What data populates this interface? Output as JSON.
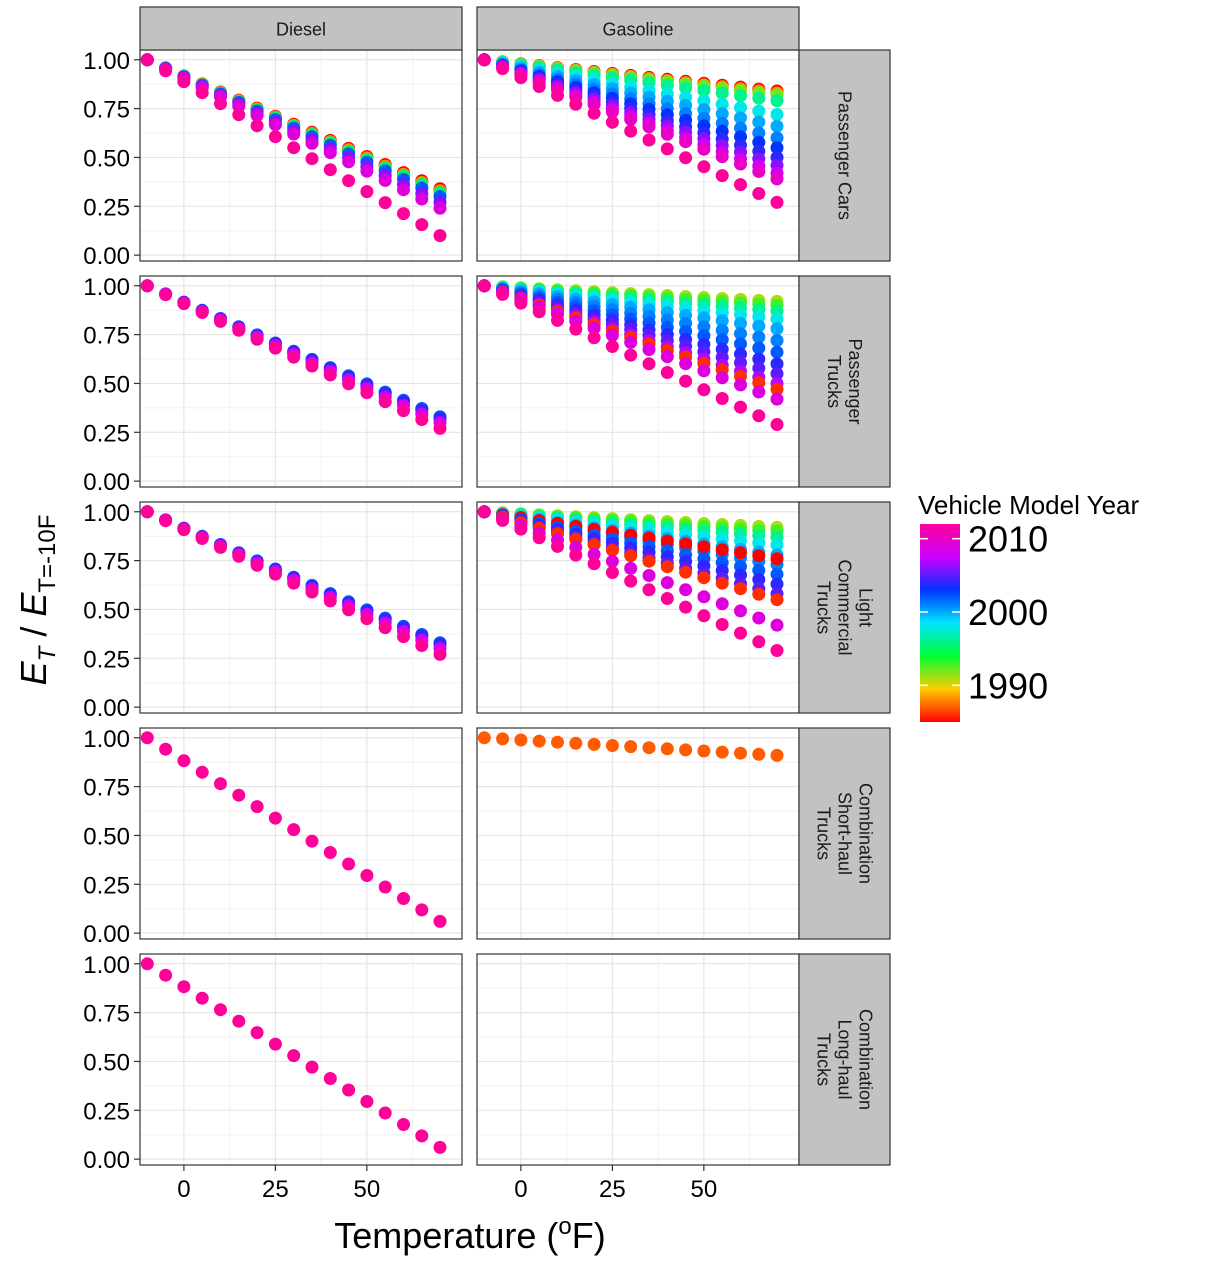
{
  "chart_data": {
    "type": "scatter",
    "title": "",
    "xlabel": "Temperature (oF)",
    "xlabel_parts": {
      "pre": "Temperature (",
      "sup": "o",
      "post": "F)"
    },
    "ylabel": "E_T / E_T=-10F",
    "ylabel_parts": {
      "a": "E",
      "a_sub": "T",
      "slash": " / ",
      "b": "E",
      "b_sub": "T=-10F"
    },
    "xlim": [
      -12,
      76
    ],
    "ylim": [
      -0.03,
      1.05
    ],
    "x_ticks": [
      0,
      25,
      50
    ],
    "x_tick_labels": [
      "0",
      "25",
      "50"
    ],
    "y_ticks": [
      0,
      0.25,
      0.5,
      0.75,
      1
    ],
    "y_tick_labels": [
      "0.00",
      "0.25",
      "0.50",
      "0.75",
      "1.00"
    ],
    "x": [
      -10,
      -5,
      0,
      5,
      10,
      15,
      20,
      25,
      30,
      35,
      40,
      45,
      50,
      55,
      60,
      65,
      70
    ],
    "grid": true,
    "columns": [
      "Diesel",
      "Gasoline"
    ],
    "rows": [
      "Passenger Cars",
      "Passenger Trucks",
      "Light Commercial Trucks",
      "Combination Short-haul Trucks",
      "Combination Long-haul Trucks"
    ],
    "row_label_lines": [
      [
        "Passenger Cars"
      ],
      [
        "Passenger",
        "Trucks"
      ],
      [
        "Light",
        "Commercial",
        "Trucks"
      ],
      [
        "Combination",
        "Short-haul",
        "Trucks"
      ],
      [
        "Combination",
        "Long-haul",
        "Trucks"
      ]
    ],
    "legend": {
      "title": "Vehicle Model Year",
      "range": [
        1985,
        2012
      ],
      "ticks": [
        2010,
        2000,
        1990
      ],
      "placement": "right",
      "colors": [
        "#ff0000",
        "#ffcc00",
        "#00ff33",
        "#00e5ff",
        "#0033ff",
        "#cc00ff",
        "#ff0099"
      ]
    },
    "panels": [
      {
        "row": 0,
        "col": 0,
        "series": [
          {
            "year": 1985,
            "end": 0.34
          },
          {
            "year": 1988,
            "end": 0.33
          },
          {
            "year": 1995,
            "end": 0.32
          },
          {
            "year": 2002,
            "end": 0.3
          },
          {
            "year": 2006,
            "end": 0.27
          },
          {
            "year": 2009,
            "end": 0.24
          },
          {
            "year": 2012,
            "end": 0.1
          }
        ]
      },
      {
        "row": 0,
        "col": 1,
        "series": [
          {
            "year": 1985,
            "end": 0.84
          },
          {
            "year": 1988,
            "end": 0.83
          },
          {
            "year": 1992,
            "end": 0.82
          },
          {
            "year": 1996,
            "end": 0.79
          },
          {
            "year": 1998,
            "end": 0.72
          },
          {
            "year": 2000,
            "end": 0.66
          },
          {
            "year": 2001,
            "end": 0.6
          },
          {
            "year": 2003,
            "end": 0.55
          },
          {
            "year": 2004,
            "end": 0.5
          },
          {
            "year": 2006,
            "end": 0.46
          },
          {
            "year": 2008,
            "end": 0.42
          },
          {
            "year": 2010,
            "end": 0.39
          },
          {
            "year": 2012,
            "end": 0.27
          }
        ]
      },
      {
        "row": 1,
        "col": 0,
        "series": [
          {
            "year": 2002,
            "end": 0.33
          },
          {
            "year": 2004,
            "end": 0.32
          },
          {
            "year": 2008,
            "end": 0.3
          },
          {
            "year": 2012,
            "end": 0.27
          }
        ]
      },
      {
        "row": 1,
        "col": 1,
        "series": [
          {
            "year": 1991,
            "end": 0.92
          },
          {
            "year": 1993,
            "end": 0.9
          },
          {
            "year": 1996,
            "end": 0.87
          },
          {
            "year": 1998,
            "end": 0.83
          },
          {
            "year": 2000,
            "end": 0.78
          },
          {
            "year": 2001,
            "end": 0.72
          },
          {
            "year": 2002,
            "end": 0.66
          },
          {
            "year": 2004,
            "end": 0.6
          },
          {
            "year": 2005,
            "end": 0.55
          },
          {
            "year": 2007,
            "end": 0.5
          },
          {
            "year": 1986,
            "end": 0.47
          },
          {
            "year": 2009,
            "end": 0.42
          },
          {
            "year": 2012,
            "end": 0.29
          }
        ]
      },
      {
        "row": 2,
        "col": 0,
        "series": [
          {
            "year": 2002,
            "end": 0.33
          },
          {
            "year": 2004,
            "end": 0.32
          },
          {
            "year": 2008,
            "end": 0.3
          },
          {
            "year": 2012,
            "end": 0.27
          }
        ]
      },
      {
        "row": 2,
        "col": 1,
        "series": [
          {
            "year": 1991,
            "end": 0.92
          },
          {
            "year": 1993,
            "end": 0.9
          },
          {
            "year": 1996,
            "end": 0.87
          },
          {
            "year": 1998,
            "end": 0.83
          },
          {
            "year": 2000,
            "end": 0.78
          },
          {
            "year": 2001,
            "end": 0.73
          },
          {
            "year": 1985,
            "end": 0.76
          },
          {
            "year": 2002,
            "end": 0.68
          },
          {
            "year": 2004,
            "end": 0.63
          },
          {
            "year": 2005,
            "end": 0.58
          },
          {
            "year": 1986,
            "end": 0.55
          },
          {
            "year": 2009,
            "end": 0.42
          },
          {
            "year": 2012,
            "end": 0.29
          }
        ]
      },
      {
        "row": 3,
        "col": 0,
        "series": [
          {
            "year": 2012,
            "end": 0.06
          }
        ]
      },
      {
        "row": 3,
        "col": 1,
        "series": [
          {
            "year": 1987,
            "end": 0.91
          }
        ]
      },
      {
        "row": 4,
        "col": 0,
        "series": [
          {
            "year": 2012,
            "end": 0.06
          }
        ]
      },
      {
        "row": 4,
        "col": 1,
        "series": []
      }
    ]
  }
}
